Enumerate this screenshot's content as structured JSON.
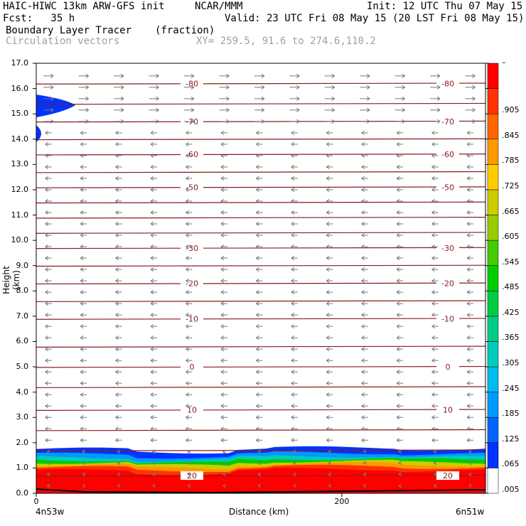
{
  "header": {
    "model": "HAIC-HIWC 13km ARW-GFS init",
    "org": "NCAR/MMM",
    "init": "Init: 12 UTC Thu 07 May 15",
    "fcst": "Fcst:   35 h",
    "valid": "Valid: 23 UTC Fri 08 May 15 (20 LST Fri 08 May 15)",
    "field": "Boundary Layer Tracer",
    "units": "(fraction)",
    "vectors": "Circulation vectors",
    "xy": "XY= 259.5, 91.6 to 274.6,110.2"
  },
  "colors": {
    "contour": "#8b1a1a",
    "vector": "#777777",
    "frame": "#000000"
  },
  "chart_data": {
    "type": "heatmap",
    "xlabel": "Distance (km)",
    "ylabel": "Height (km)",
    "x_ticks": [
      "0",
      "200"
    ],
    "x_tick_values": [
      0,
      200
    ],
    "x_end_labels": [
      "4n53w",
      "6n51w"
    ],
    "xlim": [
      0,
      294
    ],
    "ylim": [
      0,
      17
    ],
    "y_ticks": [
      "0.0",
      "1.0",
      "2.0",
      "3.0",
      "4.0",
      "5.0",
      "6.0",
      "7.0",
      "8.0",
      "9.0",
      "10.0",
      "11.0",
      "12.0",
      "13.0",
      "14.0",
      "15.0",
      "16.0",
      "17.0"
    ],
    "colorbar_labels": [
      ".005",
      ".065",
      ".125",
      ".185",
      ".245",
      ".305",
      ".365",
      ".425",
      ".485",
      ".545",
      ".605",
      ".665",
      ".725",
      ".785",
      ".845",
      ".905",
      "–"
    ],
    "colorbar_colors": [
      "#ffffff",
      "#0033ff",
      "#0066ff",
      "#0099ff",
      "#00bbee",
      "#00ccbb",
      "#00cc88",
      "#00cc44",
      "#00cc00",
      "#44cc00",
      "#99cc00",
      "#cccc00",
      "#ffcc00",
      "#ff9900",
      "#ff6600",
      "#ff3300",
      "#ff0000"
    ],
    "isotherm_labels": [
      {
        "value": "-80",
        "height": 16.2
      },
      {
        "value": "-70",
        "height": 14.7
      },
      {
        "value": "-60",
        "height": 13.4
      },
      {
        "value": "-50",
        "height": 12.1
      },
      {
        "value": "-30",
        "height": 9.7
      },
      {
        "value": "-20",
        "height": 8.3
      },
      {
        "value": "-10",
        "height": 6.9
      },
      {
        "value": "0",
        "height": 5.0
      },
      {
        "value": "10",
        "height": 3.3
      },
      {
        "value": "20",
        "height": 0.7
      }
    ],
    "contour_heights": [
      16.2,
      15.4,
      14.7,
      14.0,
      13.4,
      12.7,
      12.1,
      11.5,
      10.9,
      10.3,
      9.7,
      9.0,
      8.3,
      7.6,
      6.9,
      5.8,
      5.0,
      4.2,
      3.3,
      2.5,
      1.7,
      0.7
    ],
    "tracer_top_height": 1.75
  }
}
